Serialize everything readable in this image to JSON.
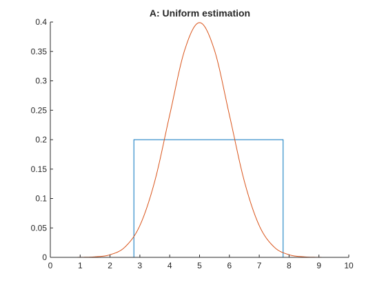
{
  "chart_data": {
    "type": "line",
    "title": "A: Uniform estimation",
    "xlabel": "",
    "ylabel": "",
    "xlim": [
      0,
      10
    ],
    "ylim": [
      0,
      0.4
    ],
    "xticks": [
      "0",
      "1",
      "2",
      "3",
      "4",
      "5",
      "6",
      "7",
      "8",
      "9",
      "10"
    ],
    "yticks": [
      "0",
      "0.05",
      "0.1",
      "0.15",
      "0.2",
      "0.25",
      "0.3",
      "0.35",
      "0.4"
    ],
    "grid": false,
    "legend": "none",
    "series": [
      {
        "color": "#0072BD",
        "x": [
          0,
          2.8,
          2.8,
          7.8,
          7.8,
          10
        ],
        "y": [
          0,
          0,
          0.2,
          0.2,
          0,
          0
        ]
      },
      {
        "color": "#D95319",
        "x": [
          0,
          0.5,
          1,
          1.5,
          2,
          2.5,
          3,
          3.5,
          4,
          4.5,
          5,
          5.5,
          6,
          6.5,
          7,
          7.5,
          8,
          8.5,
          9,
          9.5,
          10
        ],
        "y": [
          1.5e-06,
          1.6e-05,
          0.000134,
          0.000873,
          0.00443,
          0.0175,
          0.054,
          0.1295,
          0.242,
          0.352,
          0.399,
          0.352,
          0.242,
          0.1295,
          0.054,
          0.0175,
          0.00443,
          0.000873,
          0.000134,
          1.6e-05,
          1.5e-06
        ]
      }
    ]
  }
}
